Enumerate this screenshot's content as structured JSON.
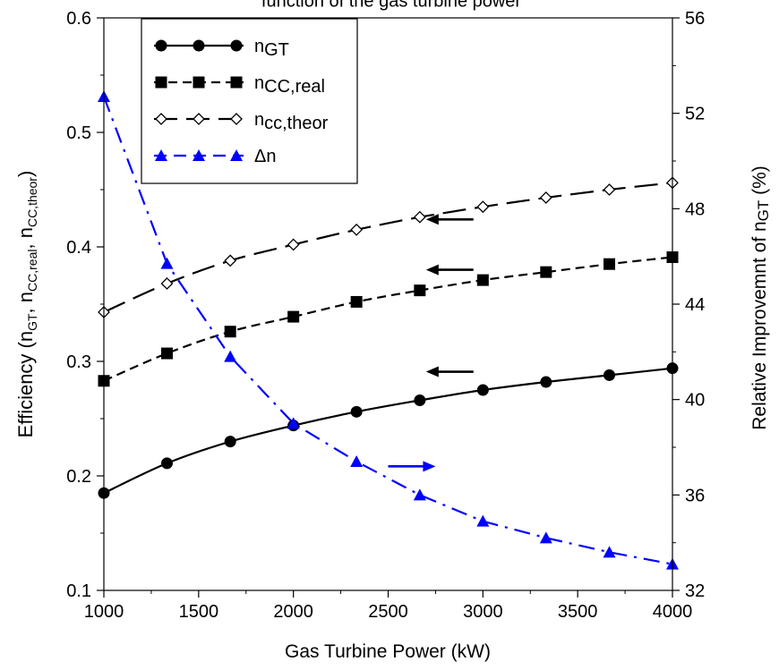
{
  "chart_data": {
    "type": "line",
    "title": "function of the gas turbine power",
    "xlabel": "Gas Turbine Power (kW)",
    "ylabel_left": {
      "main": "Efficiency (n",
      "s1": "GT",
      "sep1": ", n",
      "s2": "CC,real",
      "sep2": ", n",
      "s3": "CC,theor",
      "end": ")"
    },
    "ylabel_right": {
      "main": "Relative Improvemnt of n",
      "sub": "GT",
      "end": " (%)"
    },
    "xlim": [
      1000,
      4000
    ],
    "ylim_left": [
      0.1,
      0.6
    ],
    "ylim_right": [
      32,
      56
    ],
    "xticks": [
      "1000",
      "1500",
      "2000",
      "2500",
      "3000",
      "3500",
      "4000"
    ],
    "yticks_left": [
      "0.1",
      "0.2",
      "0.3",
      "0.4",
      "0.5",
      "0.6"
    ],
    "yticks_right": [
      "32",
      "36",
      "40",
      "44",
      "48",
      "52",
      "56"
    ],
    "legend_position": "top-left",
    "series": [
      {
        "name": "n",
        "sub": "GT",
        "axis": "left",
        "marker": "circle",
        "dash": "solid",
        "color": "#000000",
        "x": [
          1000,
          1333,
          1667,
          2000,
          2333,
          2667,
          3000,
          3333,
          3667,
          4000
        ],
        "values": [
          0.185,
          0.211,
          0.23,
          0.244,
          0.256,
          0.266,
          0.275,
          0.282,
          0.288,
          0.294
        ]
      },
      {
        "name": "n",
        "sub": "CC,real",
        "axis": "left",
        "marker": "square",
        "dash": "dashed",
        "color": "#000000",
        "x": [
          1000,
          1333,
          1667,
          2000,
          2333,
          2667,
          3000,
          3333,
          3667,
          4000
        ],
        "values": [
          0.283,
          0.307,
          0.326,
          0.339,
          0.352,
          0.362,
          0.371,
          0.378,
          0.385,
          0.391
        ]
      },
      {
        "name": "n",
        "sub": "cc,theor",
        "axis": "left",
        "marker": "diamond",
        "dash": "longdash",
        "color": "#000000",
        "x": [
          1000,
          1333,
          1667,
          2000,
          2333,
          2667,
          3000,
          3333,
          3667,
          4000
        ],
        "values": [
          0.343,
          0.368,
          0.388,
          0.402,
          0.415,
          0.426,
          0.435,
          0.443,
          0.45,
          0.456
        ]
      },
      {
        "name": "Δn",
        "sub": "",
        "axis": "right",
        "marker": "triangle",
        "dash": "dashdot",
        "color": "#0000ff",
        "x": [
          1000,
          1333,
          1667,
          2000,
          2333,
          2667,
          3000,
          3333,
          3667,
          4000
        ],
        "values": [
          52.7,
          45.7,
          41.8,
          39.0,
          37.4,
          36.0,
          34.9,
          34.2,
          33.6,
          33.1
        ]
      }
    ],
    "annotations": [
      {
        "type": "arrow",
        "direction": "left",
        "color": "#000000",
        "axis": "left",
        "x_from": 2950,
        "x_to": 2700,
        "y": 0.424
      },
      {
        "type": "arrow",
        "direction": "left",
        "color": "#000000",
        "axis": "left",
        "x_from": 2950,
        "x_to": 2700,
        "y": 0.38
      },
      {
        "type": "arrow",
        "direction": "left",
        "color": "#000000",
        "axis": "left",
        "x_from": 2950,
        "x_to": 2700,
        "y": 0.291
      },
      {
        "type": "arrow",
        "direction": "right",
        "color": "#0000ff",
        "axis": "right",
        "x_from": 2500,
        "x_to": 2750,
        "y": 37.2
      }
    ]
  }
}
